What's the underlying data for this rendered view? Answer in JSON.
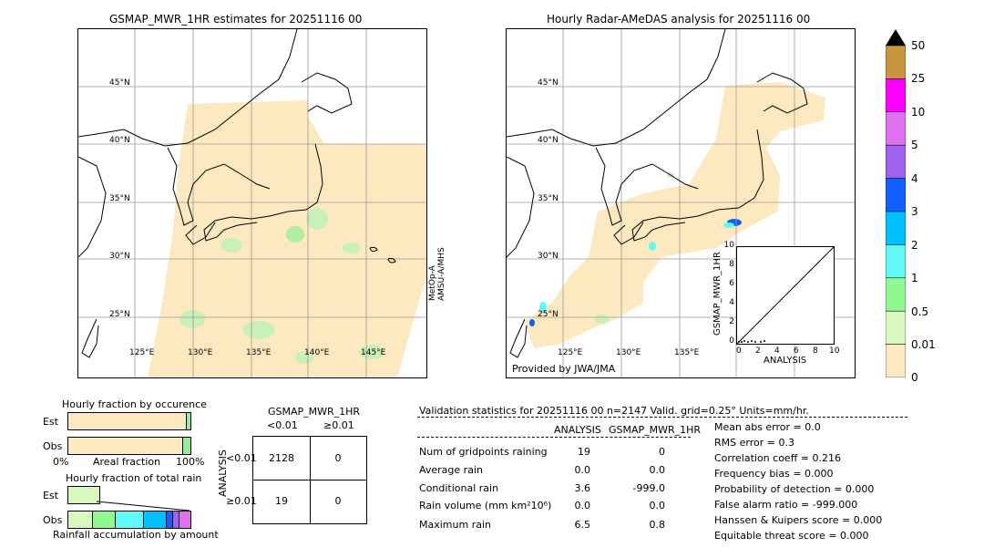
{
  "colors": {
    "rain_light": "#fde9c0",
    "rain_green": "#90f090",
    "coast": "#000000",
    "grid": "#888888"
  },
  "left_map": {
    "title": "GSMAP_MWR_1HR estimates for 20251116 00",
    "lat_labels": [
      "45°N",
      "40°N",
      "35°N",
      "30°N",
      "25°N"
    ],
    "lon_labels": [
      "125°E",
      "130°E",
      "135°E",
      "140°E",
      "145°E"
    ],
    "side_label_1": "MetOp-A",
    "side_label_2": "AMSU-A/MHS"
  },
  "right_map": {
    "title": "Hourly Radar-AMeDAS analysis for 20251116 00",
    "lat_labels": [
      "45°N",
      "40°N",
      "35°N",
      "30°N",
      "25°N"
    ],
    "lon_labels": [
      "125°E",
      "130°E",
      "135°E"
    ],
    "credit": "Provided by JWA/JMA"
  },
  "colorbar": {
    "labels": [
      "50",
      "25",
      "10",
      "5",
      "4",
      "3",
      "2",
      "1",
      "0.5",
      "0.01",
      "0"
    ],
    "colors": [
      "#c8963c",
      "#ff00ff",
      "#e070f0",
      "#a060f0",
      "#1060ff",
      "#00c0ff",
      "#60f8f8",
      "#90f890",
      "#d8f8c0",
      "#fde9c0"
    ]
  },
  "scatter": {
    "ylabel": "GSMAP_MWR_1HR",
    "xlabel": "ANALYSIS",
    "ticks": [
      "0",
      "2",
      "4",
      "6",
      "8",
      "10"
    ]
  },
  "occurrence": {
    "title": "Hourly fraction by occurence",
    "row_est": "Est",
    "row_obs": "Obs",
    "axis_left": "0%",
    "axis_mid": "Areal fraction",
    "axis_right": "100%"
  },
  "total_rain": {
    "title": "Hourly fraction of total rain",
    "row_est": "Est",
    "row_obs": "Obs",
    "axis_label": "Rainfall accumulation by amount"
  },
  "contingency": {
    "title": "GSMAP_MWR_1HR",
    "col1": "<0.01",
    "col2": "≥0.01",
    "side": "ANALYSIS",
    "row1": "<0.01",
    "row2": "≥0.01",
    "cells": [
      "2128",
      "0",
      "19",
      "0"
    ]
  },
  "validation": {
    "header": "Validation statistics for 20251116 00  n=2147 Valid. grid=0.25° Units=mm/hr.",
    "col_analysis": "ANALYSIS",
    "col_gsmap": "GSMAP_MWR_1HR",
    "rows": [
      {
        "label": "Num of gridpoints raining",
        "a": "19",
        "g": "0"
      },
      {
        "label": "Average rain",
        "a": "0.0",
        "g": "0.0"
      },
      {
        "label": "Conditional rain",
        "a": "3.6",
        "g": "-999.0"
      },
      {
        "label": "Rain volume (mm km²10⁶)",
        "a": "0.0",
        "g": "0.0"
      },
      {
        "label": "Maximum rain",
        "a": "6.5",
        "g": "0.8"
      }
    ],
    "scores": [
      "Mean abs error =    0.0",
      "RMS error =    0.3",
      "Correlation coeff =  0.216",
      "Frequency bias =  0.000",
      "Probability of detection =  0.000",
      "False alarm ratio = -999.000",
      "Hanssen & Kuipers score =  0.000",
      "Equitable threat score =  0.000"
    ]
  },
  "chart_data": [
    {
      "type": "table",
      "title": "GSMAP_MWR_1HR",
      "columns": [
        "<0.01",
        "≥0.01"
      ],
      "rows": [
        "<0.01",
        "≥0.01"
      ],
      "values": [
        [
          2128,
          0
        ],
        [
          19,
          0
        ]
      ]
    },
    {
      "type": "scatter",
      "xlabel": "ANALYSIS",
      "ylabel": "GSMAP_MWR_1HR",
      "xlim": [
        0,
        10
      ],
      "ylim": [
        0,
        10
      ]
    }
  ]
}
